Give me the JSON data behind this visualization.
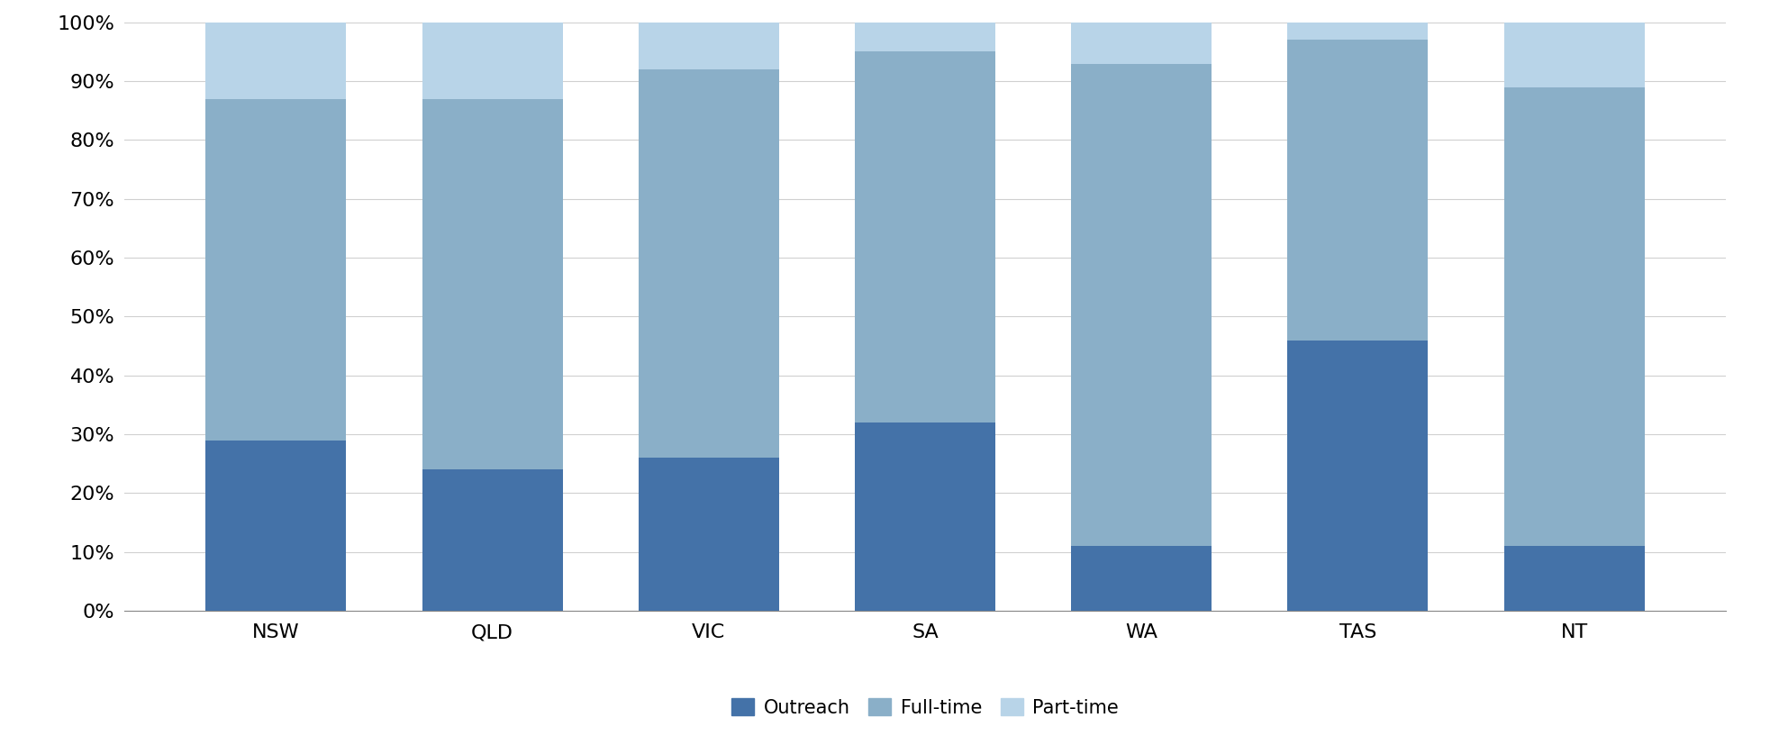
{
  "categories": [
    "NSW",
    "QLD",
    "VIC",
    "SA",
    "WA",
    "TAS",
    "NT"
  ],
  "outreach": [
    0.29,
    0.24,
    0.26,
    0.32,
    0.11,
    0.46,
    0.11
  ],
  "fulltime": [
    0.58,
    0.63,
    0.66,
    0.63,
    0.82,
    0.51,
    0.78
  ],
  "parttime": [
    0.13,
    0.13,
    0.08,
    0.05,
    0.07,
    0.03,
    0.11
  ],
  "color_outreach": "#4472a8",
  "color_fulltime": "#8aafc8",
  "color_parttime": "#b8d4e8",
  "background_color": "#ffffff",
  "legend_labels": [
    "Outreach",
    "Full-time",
    "Part-time"
  ],
  "ylim": [
    0,
    1.0
  ],
  "yticks": [
    0,
    0.1,
    0.2,
    0.3,
    0.4,
    0.5,
    0.6,
    0.7,
    0.8,
    0.9,
    1.0
  ],
  "ytick_labels": [
    "0%",
    "10%",
    "20%",
    "30%",
    "40%",
    "50%",
    "60%",
    "70%",
    "80%",
    "90%",
    "100%"
  ]
}
